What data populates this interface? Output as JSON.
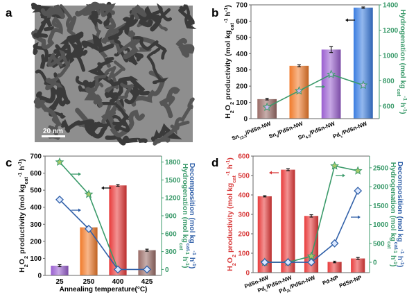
{
  "panel_a": {
    "label": "a",
    "scale_bar_text": "20 nm"
  },
  "colors": {
    "green": "#3a9a6a",
    "blue": "#2f5fa8",
    "red": "#d83a3a",
    "black": "#111111"
  },
  "chart_data": [
    {
      "panel": "b",
      "type": "bar",
      "categories": [
        "Sn_{13.5}/PdSn-NW",
        "Sn_{9}/PdSn-NW",
        "Sn_{4.5}/PdSn-NW",
        "Pd_{L}/PdSn-NW"
      ],
      "values": [
        120,
        325,
        425,
        683
      ],
      "errors": [
        5,
        6,
        18,
        4
      ],
      "bar_colors": [
        "#9a6b66",
        "#f07a2a",
        "#9a5fd0",
        "#3b7de0"
      ],
      "ylabel": "H_{2}O_{2} productivity (mol kg_{cat}^{-1} h^{-1})",
      "ylabel_color": "#111111",
      "ylim": [
        0,
        700
      ],
      "yticks": [
        0,
        100,
        200,
        300,
        400,
        500,
        600,
        700
      ],
      "right_axis": {
        "ylim": [
          500,
          1400
        ],
        "yticks": [
          600,
          800,
          1000,
          1200,
          1400
        ],
        "color": "#3a9a6a",
        "labels": [
          {
            "text": "Hydrogenation (mol kg_{cat}^{-1} h^{-1})",
            "color": "#3a9a6a"
          }
        ]
      },
      "series": [
        {
          "name": "Hydrogenation",
          "axis": "right",
          "marker": "star",
          "color": "#3a9a6a",
          "values": [
            590,
            720,
            850,
            765
          ]
        }
      ],
      "xlabel": ""
    },
    {
      "panel": "c",
      "type": "bar",
      "categories": [
        "25",
        "250",
        "400",
        "425"
      ],
      "values": [
        57,
        282,
        528,
        148
      ],
      "errors": [
        6,
        4,
        5,
        6
      ],
      "bar_colors": [
        "#9a5fd0",
        "#f07a2a",
        "#e83a3a",
        "#9a6b66"
      ],
      "ylabel": "H_{2}O_{2} productivity (mol kg_{cat}^{-1} h^{-1})",
      "ylabel_color": "#111111",
      "ylim": [
        0,
        700
      ],
      "yticks": [
        0,
        100,
        200,
        300,
        400,
        500,
        600,
        700
      ],
      "right_axis": {
        "ylim": [
          -100,
          1900
        ],
        "yticks": [
          0,
          300,
          600,
          900,
          1200,
          1500,
          1800
        ],
        "color": "#3a9a6a",
        "labels": [
          {
            "text": "Hydrogenation (mol kg_{cat}^{-1} h^{-1})",
            "color": "#3a9a6a"
          },
          {
            "text": "Decomposition (mol kg_{cat}^{-1} h^{-1})",
            "color": "#2f5fa8"
          }
        ]
      },
      "series": [
        {
          "name": "Hydrogenation",
          "axis": "right",
          "marker": "star",
          "color": "#3a9a6a",
          "values": [
            1800,
            1260,
            0,
            null
          ]
        },
        {
          "name": "Decomposition",
          "axis": "right",
          "marker": "diamond",
          "color": "#2f5fa8",
          "values": [
            1170,
            680,
            0,
            0
          ]
        }
      ],
      "xlabel": "Annealing temperature(°C)"
    },
    {
      "panel": "d",
      "type": "bar",
      "categories": [
        "PdSn-NW",
        "Pd_{L}/PdSn-NW",
        "Pd_{2L}/PdSn-NW",
        "Pd-NP",
        "PdSn-NP"
      ],
      "values": [
        393,
        530,
        292,
        55,
        73
      ],
      "errors": [
        3,
        5,
        6,
        4,
        5
      ],
      "bar_colors": [
        "#e83a3a",
        "#e83a3a",
        "#e83a3a",
        "#e83a3a",
        "#e83a3a"
      ],
      "ylabel": "H_{2}O_{2} productivity (mol kg_{cat}^{-1} h^{-1})",
      "ylabel_color": "#d83a3a",
      "ylim": [
        0,
        600
      ],
      "yticks": [
        0,
        100,
        200,
        300,
        400,
        500,
        600
      ],
      "left_tick_color": "#d83a3a",
      "right_axis": {
        "ylim": [
          -275,
          2810
        ],
        "yticks": [
          0,
          500,
          1000,
          1500,
          2000,
          2500
        ],
        "color": "#3a9a6a",
        "labels": [
          {
            "text": "Hydrogenation (mol kg_{cat}^{-1} h^{-1})",
            "color": "#3a9a6a"
          },
          {
            "text": "Decomposition (mol kg_{cat}^{-1} h^{-1})",
            "color": "#2f5fa8"
          }
        ]
      },
      "series": [
        {
          "name": "Hydrogenation",
          "axis": "right",
          "marker": "star",
          "color": "#3a9a6a",
          "values": [
            0,
            0,
            160,
            2550,
            2420
          ]
        },
        {
          "name": "Decomposition",
          "axis": "right",
          "marker": "diamond",
          "color": "#2f5fa8",
          "values": [
            0,
            0,
            0,
            500,
            1890
          ]
        }
      ],
      "xlabel": ""
    }
  ]
}
